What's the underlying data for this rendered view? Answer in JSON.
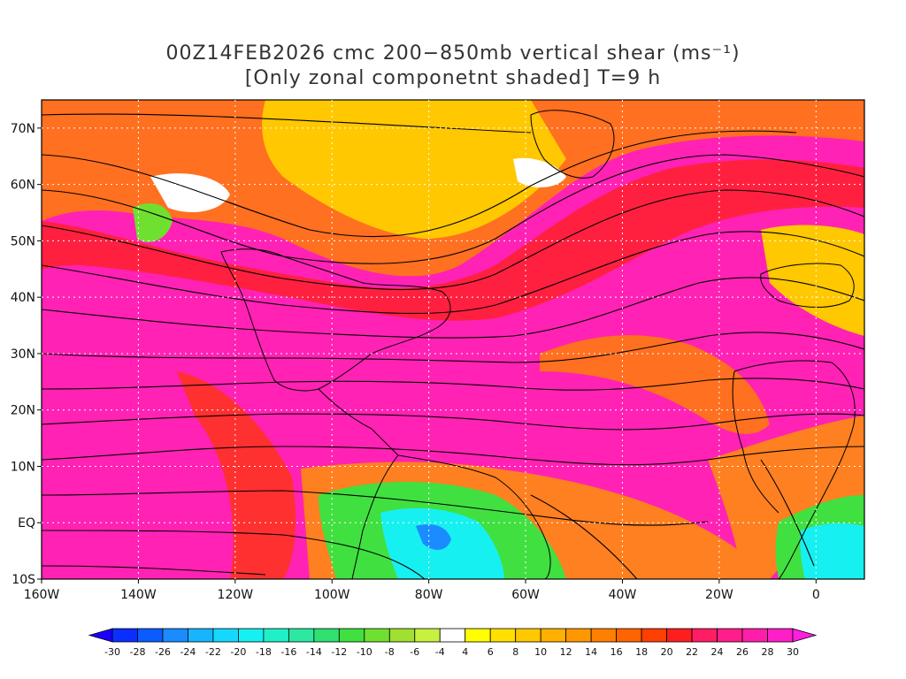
{
  "title": {
    "line1": "00Z14FEB2026 cmc 200−850mb vertical shear (ms⁻¹)",
    "line2": "[Only zonal componetnt shaded] T=9 h"
  },
  "map": {
    "lon_range": [
      -160,
      10
    ],
    "lat_range": [
      -10,
      75
    ],
    "lat_ticks": [
      {
        "value": 70,
        "label": "70N"
      },
      {
        "value": 60,
        "label": "60N"
      },
      {
        "value": 50,
        "label": "50N"
      },
      {
        "value": 40,
        "label": "40N"
      },
      {
        "value": 30,
        "label": "30N"
      },
      {
        "value": 20,
        "label": "20N"
      },
      {
        "value": 10,
        "label": "10N"
      },
      {
        "value": 0,
        "label": "EQ"
      },
      {
        "value": -10,
        "label": "10S"
      }
    ],
    "lon_ticks": [
      {
        "value": -160,
        "label": "160W"
      },
      {
        "value": -140,
        "label": "140W"
      },
      {
        "value": -120,
        "label": "120W"
      },
      {
        "value": -100,
        "label": "100W"
      },
      {
        "value": -80,
        "label": "80W"
      },
      {
        "value": -60,
        "label": "60W"
      },
      {
        "value": -40,
        "label": "40W"
      },
      {
        "value": -20,
        "label": "20W"
      },
      {
        "value": 0,
        "label": "0"
      }
    ],
    "grid": "dotted"
  },
  "colorbar": {
    "levels": [
      "-30",
      "-28",
      "-26",
      "-24",
      "-22",
      "-20",
      "-18",
      "-16",
      "-14",
      "-12",
      "-10",
      "-8",
      "-6",
      "-4",
      "4",
      "6",
      "8",
      "10",
      "12",
      "14",
      "16",
      "18",
      "20",
      "22",
      "24",
      "26",
      "28",
      "30"
    ],
    "colors": [
      "#1a00ff",
      "#0a2eff",
      "#0a5cff",
      "#1a8cff",
      "#19b4ff",
      "#16d8ff",
      "#17f0f0",
      "#20f0c8",
      "#2ce8a0",
      "#30e070",
      "#40e040",
      "#70e030",
      "#a0e030",
      "#c8f040",
      "#ffffff",
      "#ffff00",
      "#ffe000",
      "#ffc800",
      "#ffb000",
      "#ff9800",
      "#ff8000",
      "#ff6400",
      "#ff4000",
      "#ff1e1e",
      "#ff1e64",
      "#ff1e8c",
      "#ff1eaa",
      "#ff1ec8",
      "#ff1ee0"
    ]
  }
}
